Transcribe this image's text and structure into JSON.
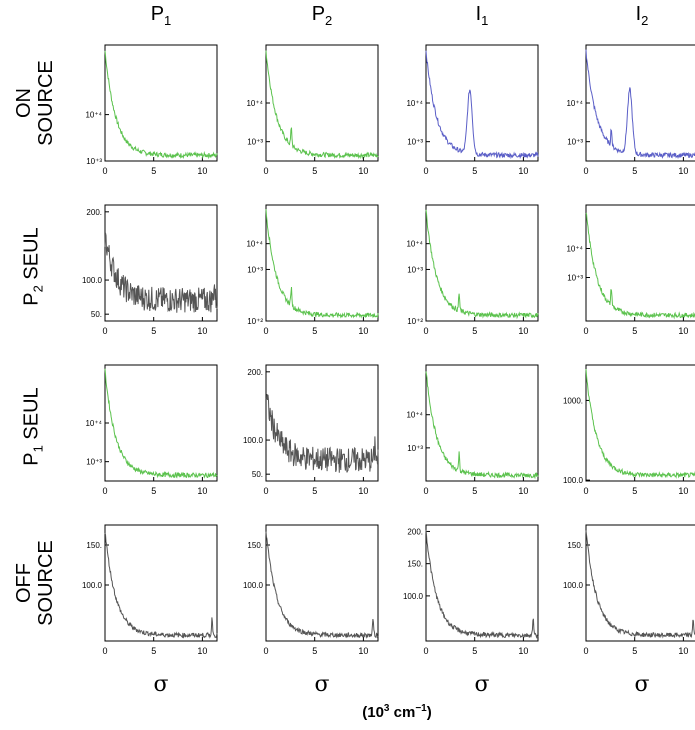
{
  "columns": [
    {
      "main": "P",
      "sub": "1"
    },
    {
      "main": "P",
      "sub": "2"
    },
    {
      "main": "I",
      "sub": "1"
    },
    {
      "main": "I",
      "sub": "2"
    }
  ],
  "rows": [
    {
      "lines": [
        {
          "main": "ON",
          "sub": ""
        },
        {
          "main": "SOURCE",
          "sub": ""
        }
      ]
    },
    {
      "lines": [
        {
          "main": "P",
          "sub": "2",
          "tail": " SEUL"
        }
      ]
    },
    {
      "lines": [
        {
          "main": "P",
          "sub": "1",
          "tail": " SEUL"
        }
      ]
    },
    {
      "lines": [
        {
          "main": "OFF",
          "sub": ""
        },
        {
          "main": "SOURCE",
          "sub": ""
        }
      ]
    }
  ],
  "x_symbol": "σ",
  "x_units": {
    "base": "(10",
    "exp": "3",
    "rest": " cm",
    "exp2": "−1",
    "close": ")"
  },
  "colors": {
    "green": "#5cc24e",
    "blue": "#5b5fc7",
    "gray": "#555555",
    "axis": "#000000"
  },
  "chart_data": [
    {
      "row": 0,
      "col": 0,
      "type": "line",
      "color": "green",
      "scale": "log",
      "ylim": [
        0.0003,
        0.00055
      ],
      "xlim": [
        0,
        11.5
      ],
      "xticks": [
        "0",
        "5",
        "10"
      ],
      "yticks": [
        {
          "v": 0.0004,
          "t": "10⁺⁴"
        },
        {
          "v": 0.0003,
          "t": "10⁺³"
        }
      ],
      "shape": "decay",
      "peak": null,
      "spike": null
    },
    {
      "row": 0,
      "col": 1,
      "type": "line",
      "color": "green",
      "scale": "log",
      "ylim": [
        0.00025,
        0.00055
      ],
      "xlim": [
        0,
        11.5
      ],
      "xticks": [
        "0",
        "5",
        "10"
      ],
      "yticks": [
        {
          "v": 0.0004,
          "t": "10⁺⁴"
        },
        {
          "v": 0.0003,
          "t": "10⁺³"
        }
      ],
      "shape": "decay",
      "peak": null,
      "spike": 2.6
    },
    {
      "row": 0,
      "col": 2,
      "type": "line",
      "color": "blue",
      "scale": "log",
      "ylim": [
        0.00025,
        0.00055
      ],
      "xlim": [
        0,
        11.5
      ],
      "xticks": [
        "0",
        "5",
        "10"
      ],
      "yticks": [
        {
          "v": 0.0004,
          "t": "10⁺⁴"
        },
        {
          "v": 0.0003,
          "t": "10⁺³"
        }
      ],
      "shape": "decay",
      "peak": 4.5,
      "spike": null
    },
    {
      "row": 0,
      "col": 3,
      "type": "line",
      "color": "blue",
      "scale": "log",
      "ylim": [
        0.00025,
        0.00055
      ],
      "xlim": [
        0,
        11.5
      ],
      "xticks": [
        "0",
        "5",
        "10"
      ],
      "yticks": [
        {
          "v": 0.0004,
          "t": "10⁺⁴"
        },
        {
          "v": 0.0003,
          "t": "10⁺³"
        }
      ],
      "shape": "decay",
      "peak": 4.5,
      "spike": 2.6
    },
    {
      "row": 1,
      "col": 0,
      "type": "line",
      "color": "gray",
      "scale": "lin",
      "ylim": [
        40,
        210
      ],
      "xlim": [
        0,
        11.5
      ],
      "xticks": [
        "0",
        "5",
        "10"
      ],
      "yticks": [
        {
          "v": 200,
          "t": "200."
        },
        {
          "v": 100,
          "t": "100.0"
        },
        {
          "v": 50,
          "t": "50."
        }
      ],
      "shape": "noisy",
      "peak": null,
      "spike": 11.2
    },
    {
      "row": 1,
      "col": 1,
      "type": "line",
      "color": "green",
      "scale": "log",
      "ylim": [
        0.0001,
        0.00055
      ],
      "xlim": [
        0,
        11.5
      ],
      "xticks": [
        "0",
        "5",
        "10"
      ],
      "yticks": [
        {
          "v": 0.0004,
          "t": "10⁺⁴"
        },
        {
          "v": 0.0003,
          "t": "10⁺³"
        },
        {
          "v": 0.0001,
          "t": "10⁺²"
        }
      ],
      "shape": "decay",
      "peak": null,
      "spike": 2.6
    },
    {
      "row": 1,
      "col": 2,
      "type": "line",
      "color": "green",
      "scale": "log",
      "ylim": [
        0.0001,
        0.00055
      ],
      "xlim": [
        0,
        11.5
      ],
      "xticks": [
        "0",
        "5",
        "10"
      ],
      "yticks": [
        {
          "v": 0.0004,
          "t": "10⁺⁴"
        },
        {
          "v": 0.0003,
          "t": "10⁺³"
        },
        {
          "v": 0.0001,
          "t": "10⁺²"
        }
      ],
      "shape": "decay",
      "peak": null,
      "spike": 3.4
    },
    {
      "row": 1,
      "col": 3,
      "type": "line",
      "color": "green",
      "scale": "log",
      "ylim": [
        0.00015,
        0.00055
      ],
      "xlim": [
        0,
        11.5
      ],
      "xticks": [
        "0",
        "5",
        "10"
      ],
      "yticks": [
        {
          "v": 0.0004,
          "t": "10⁺⁴"
        },
        {
          "v": 0.0003,
          "t": "10⁺³"
        }
      ],
      "shape": "decay",
      "peak": null,
      "spike": 2.6
    },
    {
      "row": 2,
      "col": 0,
      "type": "line",
      "color": "green",
      "scale": "log",
      "ylim": [
        0.00025,
        0.00055
      ],
      "xlim": [
        0,
        11.5
      ],
      "xticks": [
        "0",
        "5",
        "10"
      ],
      "yticks": [
        {
          "v": 0.0004,
          "t": "10⁺⁴"
        },
        {
          "v": 0.0003,
          "t": "10⁺³"
        }
      ],
      "shape": "decay",
      "peak": null,
      "spike": null
    },
    {
      "row": 2,
      "col": 1,
      "type": "line",
      "color": "gray",
      "scale": "lin",
      "ylim": [
        40,
        210
      ],
      "xlim": [
        0,
        11.5
      ],
      "xticks": [
        "0",
        "5",
        "10"
      ],
      "yticks": [
        {
          "v": 200,
          "t": "200."
        },
        {
          "v": 100,
          "t": "100.0"
        },
        {
          "v": 50,
          "t": "50."
        }
      ],
      "shape": "noisy",
      "peak": null,
      "spike": 11.2
    },
    {
      "row": 2,
      "col": 2,
      "type": "line",
      "color": "green",
      "scale": "log",
      "ylim": [
        0.0002,
        0.00055
      ],
      "xlim": [
        0,
        11.5
      ],
      "xticks": [
        "0",
        "5",
        "10"
      ],
      "yticks": [
        {
          "v": 0.0004,
          "t": "10⁺⁴"
        },
        {
          "v": 0.0003,
          "t": "10⁺³"
        }
      ],
      "shape": "decay",
      "peak": null,
      "spike": 3.4
    },
    {
      "row": 2,
      "col": 3,
      "type": "line",
      "color": "green",
      "scale": "lin",
      "ylim": [
        90,
        1400
      ],
      "xlim": [
        0,
        11.5
      ],
      "xticks": [
        "0",
        "5",
        "10"
      ],
      "yticks": [
        {
          "v": 1000,
          "t": "1000."
        },
        {
          "v": 100,
          "t": "100.0"
        }
      ],
      "shape": "decay",
      "peak": null,
      "spike": null
    },
    {
      "row": 3,
      "col": 0,
      "type": "line",
      "color": "gray",
      "scale": "lin",
      "ylim": [
        30,
        175
      ],
      "xlim": [
        0,
        11.5
      ],
      "xticks": [
        "0",
        "5",
        "10"
      ],
      "yticks": [
        {
          "v": 150,
          "t": "150."
        },
        {
          "v": 100,
          "t": "100.0"
        }
      ],
      "shape": "decay",
      "peak": null,
      "spike": 11.0
    },
    {
      "row": 3,
      "col": 1,
      "type": "line",
      "color": "gray",
      "scale": "lin",
      "ylim": [
        30,
        175
      ],
      "xlim": [
        0,
        11.5
      ],
      "xticks": [
        "0",
        "5",
        "10"
      ],
      "yticks": [
        {
          "v": 150,
          "t": "150."
        },
        {
          "v": 100,
          "t": "100.0"
        }
      ],
      "shape": "decay",
      "peak": null,
      "spike": 11.0
    },
    {
      "row": 3,
      "col": 2,
      "type": "line",
      "color": "gray",
      "scale": "lin",
      "ylim": [
        30,
        210
      ],
      "xlim": [
        0,
        11.5
      ],
      "xticks": [
        "0",
        "5",
        "10"
      ],
      "yticks": [
        {
          "v": 200,
          "t": "200."
        },
        {
          "v": 150,
          "t": "150."
        },
        {
          "v": 100,
          "t": "100.0"
        }
      ],
      "shape": "decay",
      "peak": null,
      "spike": 11.0
    },
    {
      "row": 3,
      "col": 3,
      "type": "line",
      "color": "gray",
      "scale": "lin",
      "ylim": [
        30,
        175
      ],
      "xlim": [
        0,
        11.5
      ],
      "xticks": [
        "0",
        "5",
        "10"
      ],
      "yticks": [
        {
          "v": 150,
          "t": "150."
        },
        {
          "v": 100,
          "t": "100.0"
        }
      ],
      "shape": "decay",
      "peak": null,
      "spike": 11.0
    }
  ]
}
